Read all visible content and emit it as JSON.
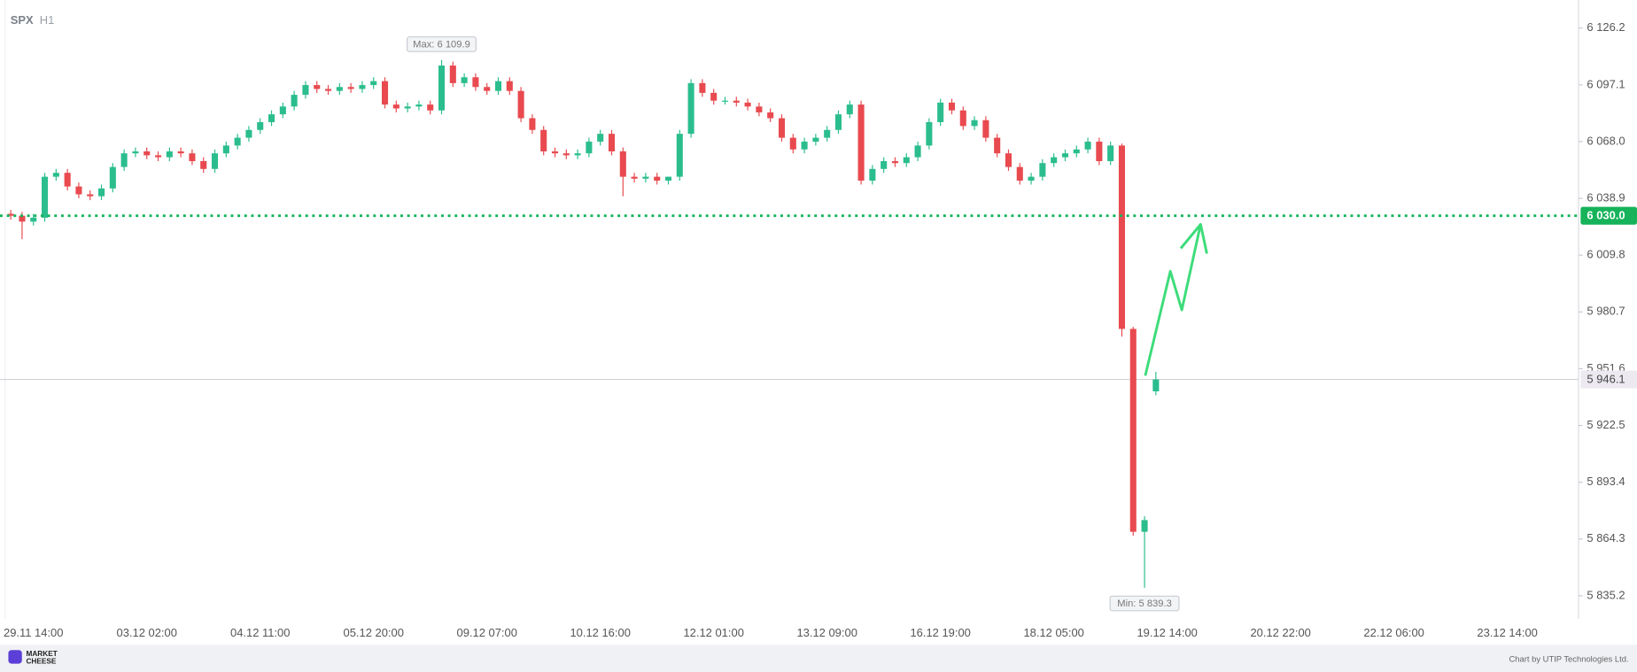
{
  "header": {
    "symbol": "SPX",
    "timeframe": "H1"
  },
  "chart_data": {
    "type": "candlestick",
    "categories": [
      null,
      null,
      "29.11 14:00",
      null,
      null,
      null,
      null,
      null,
      null,
      null,
      null,
      null,
      "03.12 02:00",
      null,
      null,
      null,
      null,
      null,
      null,
      null,
      null,
      null,
      "04.12 11:00",
      null,
      null,
      null,
      null,
      null,
      null,
      null,
      null,
      null,
      "05.12 20:00",
      null,
      null,
      null,
      null,
      null,
      null,
      null,
      null,
      null,
      "09.12 07:00",
      null,
      null,
      null,
      null,
      null,
      null,
      null,
      null,
      null,
      "10.12 16:00",
      null,
      null,
      null,
      null,
      null,
      null,
      null,
      null,
      null,
      "12.12 01:00",
      null,
      null,
      null,
      null,
      null,
      null,
      null,
      null,
      null,
      "13.12 09:00",
      null,
      null,
      null,
      null,
      null,
      null,
      null,
      null,
      null,
      "16.12 19:00",
      null,
      null,
      null,
      null,
      null,
      null,
      null,
      null,
      null,
      "18.12 05:00",
      null,
      null,
      null,
      null,
      null,
      null,
      null,
      null,
      null,
      "19.12 14:00",
      null,
      null,
      null,
      null,
      null,
      null,
      null,
      null,
      null,
      "20.12 22:00",
      null,
      null,
      null,
      null,
      null,
      null,
      null,
      null,
      null,
      "22.12 06:00",
      null,
      null,
      null,
      null,
      null,
      null,
      null,
      null,
      null,
      "23.12 14:00"
    ],
    "open": [
      6031,
      6030,
      6027,
      6029,
      6050,
      6052,
      6045,
      6041,
      6040,
      6044,
      6055,
      6062,
      6063,
      6061,
      6060,
      6063,
      6062,
      6058,
      6054,
      6062,
      6066,
      6070,
      6074,
      6078,
      6082,
      6086,
      6092,
      6097,
      6095,
      6094,
      6096,
      6095,
      6097,
      6099,
      6087,
      6085,
      6086,
      6087,
      6084,
      6107,
      6098,
      6101,
      6096,
      6094,
      6099,
      6094,
      6080,
      6074,
      6063,
      6062,
      6061,
      6062,
      6068,
      6072,
      6063,
      6050,
      6049,
      6050,
      6048,
      6050,
      6072,
      6098,
      6093,
      6089,
      6089,
      6088,
      6086,
      6083,
      6080,
      6070,
      6064,
      6068,
      6070,
      6074,
      6082,
      6087,
      6048,
      6054,
      6058,
      6057,
      6060,
      6066,
      6078,
      6088,
      6084,
      6076,
      6079,
      6070,
      6062,
      6055,
      6048,
      6050,
      6057,
      6060,
      6062,
      6064,
      6068,
      6058,
      6066,
      5972,
      5868,
      5940,
      null,
      null,
      null,
      null,
      null,
      null,
      null,
      null,
      null,
      null,
      null,
      null,
      null,
      null,
      null,
      null,
      null,
      null,
      null,
      null,
      null,
      null,
      null,
      null,
      null,
      null,
      null,
      null,
      null,
      null,
      null
    ],
    "high": [
      6033,
      6032,
      6031,
      6052,
      6054,
      6054,
      6047,
      6043,
      6046,
      6057,
      6064,
      6065,
      6065,
      6063,
      6065,
      6065,
      6064,
      6060,
      6064,
      6068,
      6072,
      6076,
      6080,
      6084,
      6088,
      6094,
      6099,
      6099,
      6097,
      6098,
      6098,
      6099,
      6101,
      6101,
      6089,
      6088,
      6089,
      6089,
      6109.9,
      6109,
      6103,
      6103,
      6098,
      6101,
      6101,
      6096,
      6082,
      6076,
      6065,
      6064,
      6064,
      6070,
      6074,
      6074,
      6065,
      6052,
      6052,
      6052,
      6050,
      6074,
      6100,
      6100,
      6095,
      6091,
      6091,
      6090,
      6088,
      6085,
      6082,
      6072,
      6070,
      6072,
      6076,
      6084,
      6089,
      6089,
      6056,
      6060,
      6060,
      6062,
      6068,
      6080,
      6090,
      6090,
      6086,
      6081,
      6081,
      6072,
      6064,
      6057,
      6052,
      6059,
      6062,
      6064,
      6066,
      6070,
      6070,
      6068,
      6067,
      5973,
      5876,
      5950,
      null,
      null,
      null,
      null,
      null,
      null,
      null,
      null,
      null,
      null,
      null,
      null,
      null,
      null,
      null,
      null,
      null,
      null,
      null,
      null,
      null,
      null,
      null,
      null,
      null,
      null,
      null,
      null,
      null,
      null,
      null
    ],
    "low": [
      6028,
      6018,
      6025,
      6027,
      6048,
      6043,
      6039,
      6038,
      6038,
      6042,
      6053,
      6060,
      6059,
      6058,
      6058,
      6060,
      6056,
      6052,
      6052,
      6060,
      6064,
      6068,
      6072,
      6076,
      6080,
      6084,
      6090,
      6093,
      6092,
      6092,
      6093,
      6093,
      6095,
      6085,
      6083,
      6083,
      6084,
      6082,
      6082,
      6096,
      6096,
      6094,
      6092,
      6092,
      6092,
      6078,
      6072,
      6061,
      6060,
      6059,
      6059,
      6060,
      6066,
      6061,
      6040,
      6047,
      6047,
      6046,
      6046,
      6048,
      6070,
      6091,
      6087,
      6087,
      6086,
      6084,
      6081,
      6078,
      6068,
      6062,
      6062,
      6066,
      6068,
      6072,
      6080,
      6046,
      6046,
      6052,
      6055,
      6055,
      6058,
      6064,
      6076,
      6082,
      6074,
      6074,
      6068,
      6060,
      6053,
      6046,
      6046,
      6048,
      6055,
      6058,
      6060,
      6062,
      6056,
      6056,
      5968,
      5866,
      5839.3,
      5938,
      null,
      null,
      null,
      null,
      null,
      null,
      null,
      null,
      null,
      null,
      null,
      null,
      null,
      null,
      null,
      null,
      null,
      null,
      null,
      null,
      null,
      null,
      null,
      null,
      null,
      null,
      null,
      null,
      null,
      null,
      null
    ],
    "close": [
      6030,
      6027,
      6029,
      6050,
      6052,
      6045,
      6041,
      6040,
      6044,
      6055,
      6062,
      6063,
      6061,
      6060,
      6063,
      6062,
      6058,
      6054,
      6062,
      6066,
      6070,
      6074,
      6078,
      6082,
      6086,
      6092,
      6097,
      6095,
      6094,
      6096,
      6095,
      6097,
      6099,
      6087,
      6085,
      6086,
      6087,
      6084,
      6107,
      6098,
      6101,
      6096,
      6094,
      6099,
      6094,
      6080,
      6074,
      6063,
      6062,
      6061,
      6062,
      6068,
      6072,
      6063,
      6050,
      6049,
      6050,
      6048,
      6050,
      6072,
      6098,
      6093,
      6089,
      6089,
      6088,
      6086,
      6083,
      6080,
      6070,
      6064,
      6068,
      6070,
      6074,
      6082,
      6087,
      6048,
      6054,
      6058,
      6057,
      6060,
      6066,
      6078,
      6088,
      6084,
      6076,
      6079,
      6070,
      6062,
      6055,
      6048,
      6050,
      6057,
      6060,
      6062,
      6064,
      6068,
      6058,
      6066,
      5972,
      5868,
      5874,
      5946.1,
      null,
      null,
      null,
      null,
      null,
      null,
      null,
      null,
      null,
      null,
      null,
      null,
      null,
      null,
      null,
      null,
      null,
      null,
      null,
      null,
      null,
      null,
      null,
      null,
      null,
      null,
      null,
      null,
      null,
      null,
      null
    ],
    "up_color": "#2bbd8e",
    "down_color": "#e84a4f",
    "ylim": [
      5823.4,
      6140.6
    ],
    "yticks": [
      {
        "value": 6126.2,
        "label": "6 126.2"
      },
      {
        "value": 6097.1,
        "label": "6 097.1"
      },
      {
        "value": 6068.0,
        "label": "6 068.0"
      },
      {
        "value": 6038.9,
        "label": "6 038.9"
      },
      {
        "value": 6009.8,
        "label": "6 009.8"
      },
      {
        "value": 5980.7,
        "label": "5 980.7"
      },
      {
        "value": 5951.6,
        "label": "5 951.6"
      },
      {
        "value": 5922.5,
        "label": "5 922.5"
      },
      {
        "value": 5893.4,
        "label": "5 893.4"
      },
      {
        "value": 5864.3,
        "label": "5 864.3"
      },
      {
        "value": 5835.2,
        "label": "5 835.2"
      }
    ],
    "level": {
      "value": 6030.0,
      "label": "6 030.0",
      "color": "#16b35a"
    },
    "last_price": {
      "value": 5946.1,
      "label": "5 946.1"
    },
    "max_annotation": {
      "value": 6109.9,
      "label": "Max: 6 109.9"
    },
    "min_annotation": {
      "value": 5839.3,
      "label": "Min: 5 839.3"
    }
  },
  "footer": {
    "brand_lines": [
      "MARKET",
      "CHEESE"
    ],
    "credit": "Chart by UTIP Technologies Ltd."
  }
}
